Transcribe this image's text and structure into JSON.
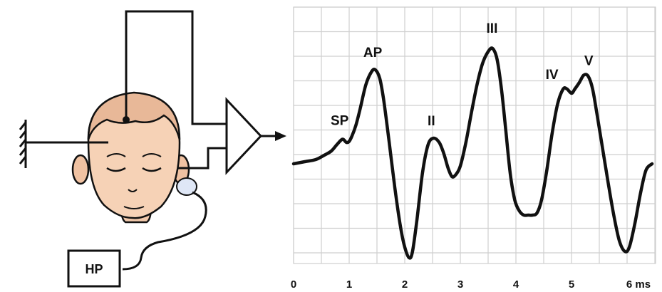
{
  "setup": {
    "hp_label": "HP"
  },
  "chart_data": {
    "type": "line",
    "title": "",
    "xlabel": "",
    "ylabel": "",
    "x_tick_labels": [
      "0",
      "1",
      "2",
      "3",
      "4",
      "5",
      "6 ms"
    ],
    "xlim": [
      0,
      6.5
    ],
    "grid": true,
    "series": [
      {
        "points": [
          [
            0.0,
            0.1
          ],
          [
            0.2,
            0.12
          ],
          [
            0.4,
            0.14
          ],
          [
            0.55,
            0.18
          ],
          [
            0.68,
            0.22
          ],
          [
            0.78,
            0.28
          ],
          [
            0.88,
            0.33
          ],
          [
            0.95,
            0.3
          ],
          [
            1.0,
            0.31
          ],
          [
            1.05,
            0.36
          ],
          [
            1.12,
            0.46
          ],
          [
            1.2,
            0.62
          ],
          [
            1.3,
            0.84
          ],
          [
            1.4,
            0.96
          ],
          [
            1.47,
            0.98
          ],
          [
            1.55,
            0.9
          ],
          [
            1.62,
            0.7
          ],
          [
            1.72,
            0.3
          ],
          [
            1.82,
            -0.12
          ],
          [
            1.92,
            -0.48
          ],
          [
            2.0,
            -0.68
          ],
          [
            2.08,
            -0.78
          ],
          [
            2.14,
            -0.72
          ],
          [
            2.22,
            -0.42
          ],
          [
            2.32,
            0.02
          ],
          [
            2.42,
            0.28
          ],
          [
            2.52,
            0.34
          ],
          [
            2.62,
            0.3
          ],
          [
            2.7,
            0.2
          ],
          [
            2.78,
            0.06
          ],
          [
            2.85,
            -0.02
          ],
          [
            2.92,
            0.0
          ],
          [
            3.0,
            0.08
          ],
          [
            3.1,
            0.3
          ],
          [
            3.2,
            0.58
          ],
          [
            3.3,
            0.84
          ],
          [
            3.4,
            1.04
          ],
          [
            3.5,
            1.15
          ],
          [
            3.58,
            1.18
          ],
          [
            3.66,
            1.08
          ],
          [
            3.74,
            0.8
          ],
          [
            3.82,
            0.4
          ],
          [
            3.9,
            0.0
          ],
          [
            3.98,
            -0.24
          ],
          [
            4.06,
            -0.34
          ],
          [
            4.14,
            -0.38
          ],
          [
            4.22,
            -0.38
          ],
          [
            4.3,
            -0.38
          ],
          [
            4.38,
            -0.36
          ],
          [
            4.46,
            -0.24
          ],
          [
            4.55,
            0.02
          ],
          [
            4.65,
            0.38
          ],
          [
            4.75,
            0.66
          ],
          [
            4.85,
            0.8
          ],
          [
            4.92,
            0.8
          ],
          [
            5.0,
            0.76
          ],
          [
            5.06,
            0.8
          ],
          [
            5.14,
            0.86
          ],
          [
            5.22,
            0.93
          ],
          [
            5.3,
            0.92
          ],
          [
            5.38,
            0.8
          ],
          [
            5.46,
            0.56
          ],
          [
            5.56,
            0.24
          ],
          [
            5.66,
            -0.08
          ],
          [
            5.76,
            -0.38
          ],
          [
            5.86,
            -0.62
          ],
          [
            5.96,
            -0.72
          ],
          [
            6.04,
            -0.68
          ],
          [
            6.14,
            -0.46
          ],
          [
            6.24,
            -0.18
          ],
          [
            6.34,
            0.04
          ],
          [
            6.45,
            0.1
          ]
        ]
      }
    ],
    "annotations": [
      {
        "text": "SP",
        "x": 0.88,
        "y": 0.33
      },
      {
        "text": "AP",
        "x": 1.45,
        "y": 0.98
      },
      {
        "text": "II",
        "x": 2.53,
        "y": 0.34
      },
      {
        "text": "III",
        "x": 3.57,
        "y": 1.18
      },
      {
        "text": "IV",
        "x": 4.88,
        "y": 0.8
      },
      {
        "text": "V",
        "x": 5.26,
        "y": 0.93
      }
    ]
  }
}
